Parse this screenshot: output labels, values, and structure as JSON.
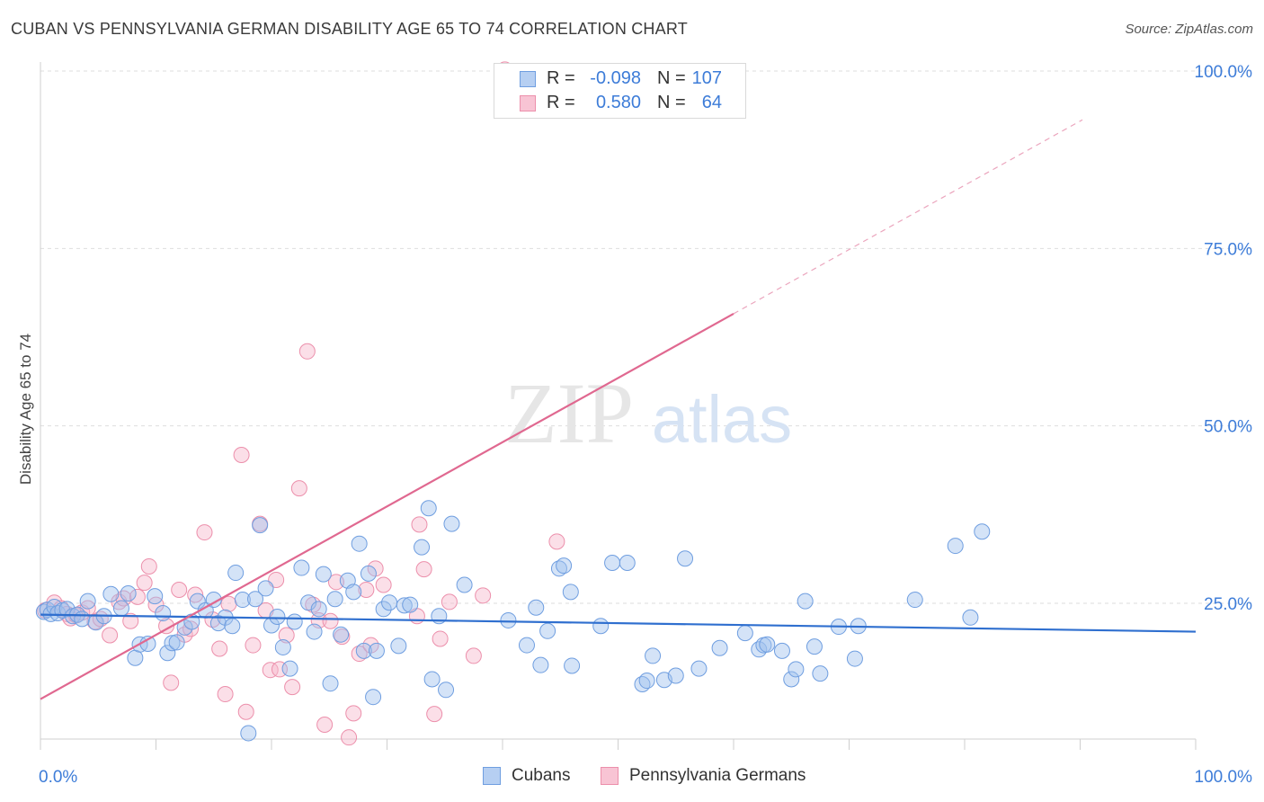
{
  "title": "CUBAN VS PENNSYLVANIA GERMAN DISABILITY AGE 65 TO 74 CORRELATION CHART",
  "source": "Source: ZipAtlas.com",
  "watermark": {
    "zip": "ZIP",
    "atlas": "atlas"
  },
  "legend": {
    "rows": [
      {
        "r_label": "R =",
        "r_value": "-0.098",
        "n_label": "N =",
        "n_value": "107",
        "fill": "#b6cff2",
        "stroke": "#6f9ee0"
      },
      {
        "r_label": "R =",
        "r_value": "0.580",
        "n_label": "N =",
        "n_value": "64",
        "fill": "#f8c4d4",
        "stroke": "#ec8fab"
      }
    ]
  },
  "bottom_legend": [
    {
      "label": "Cubans",
      "fill": "#b6cff2",
      "stroke": "#6f9ee0"
    },
    {
      "label": "Pennsylvania Germans",
      "fill": "#f8c4d4",
      "stroke": "#ec8fab"
    }
  ],
  "colors": {
    "cubans_fill": "rgba(160,192,238,0.45)",
    "cubans_stroke": "#6f9ee0",
    "cubans_line": "#2f6fcf",
    "pg_fill": "rgba(246,184,204,0.45)",
    "pg_stroke": "#ec8fab",
    "pg_line": "#e06890",
    "tick_label": "#3d7cd8"
  },
  "chart_data": {
    "type": "scatter",
    "title": "CUBAN VS PENNSYLVANIA GERMAN DISABILITY AGE 65 TO 74 CORRELATION CHART",
    "xlabel": "",
    "ylabel": "Disability Age 65 to 74",
    "xlim": [
      0,
      100
    ],
    "ylim": [
      0,
      105
    ],
    "x_tick_labels": [
      "0.0%",
      "100.0%"
    ],
    "y_ticks": [
      25,
      50,
      75,
      100
    ],
    "y_tick_labels": [
      "25.0%",
      "50.0%",
      "75.0%",
      "100.0%"
    ],
    "grid": "horizontal dashed",
    "legend_position": "top-center",
    "series": [
      {
        "name": "Cubans",
        "r": -0.098,
        "n": 107,
        "trend": {
          "x0": 0,
          "y0": 23.4,
          "x1": 100,
          "y1": 21.0
        },
        "points": [
          [
            0.3,
            23.8
          ],
          [
            0.6,
            24.1
          ],
          [
            0.9,
            23.5
          ],
          [
            1.2,
            24.5
          ],
          [
            1.5,
            23.6
          ],
          [
            1.9,
            24.0
          ],
          [
            2.3,
            24.2
          ],
          [
            2.8,
            23.2
          ],
          [
            3.2,
            23.4
          ],
          [
            3.6,
            22.8
          ],
          [
            4.1,
            25.3
          ],
          [
            4.8,
            22.3
          ],
          [
            5.5,
            23.2
          ],
          [
            6.1,
            26.3
          ],
          [
            7.0,
            24.3
          ],
          [
            7.6,
            26.4
          ],
          [
            8.2,
            17.3
          ],
          [
            8.6,
            19.2
          ],
          [
            9.3,
            19.3
          ],
          [
            9.9,
            26.0
          ],
          [
            10.6,
            23.6
          ],
          [
            11.0,
            18.0
          ],
          [
            11.4,
            19.4
          ],
          [
            11.8,
            19.5
          ],
          [
            12.5,
            21.6
          ],
          [
            13.1,
            22.4
          ],
          [
            13.6,
            25.3
          ],
          [
            14.3,
            24.0
          ],
          [
            15.0,
            25.5
          ],
          [
            15.4,
            22.2
          ],
          [
            16.0,
            23.0
          ],
          [
            16.6,
            21.8
          ],
          [
            16.9,
            29.3
          ],
          [
            17.5,
            25.5
          ],
          [
            18.0,
            6.7
          ],
          [
            18.6,
            25.6
          ],
          [
            19.0,
            36.0
          ],
          [
            19.5,
            27.1
          ],
          [
            20.0,
            21.9
          ],
          [
            20.5,
            23.1
          ],
          [
            21.0,
            18.8
          ],
          [
            21.6,
            15.8
          ],
          [
            22.0,
            22.4
          ],
          [
            22.6,
            30.0
          ],
          [
            23.2,
            25.1
          ],
          [
            23.7,
            21.0
          ],
          [
            24.1,
            24.2
          ],
          [
            24.5,
            29.1
          ],
          [
            25.1,
            13.7
          ],
          [
            25.5,
            25.6
          ],
          [
            26.0,
            20.6
          ],
          [
            26.6,
            28.2
          ],
          [
            27.1,
            26.6
          ],
          [
            27.6,
            33.4
          ],
          [
            28.0,
            18.3
          ],
          [
            28.4,
            29.2
          ],
          [
            28.8,
            11.8
          ],
          [
            29.1,
            18.3
          ],
          [
            29.7,
            24.2
          ],
          [
            30.2,
            25.1
          ],
          [
            31.0,
            19.0
          ],
          [
            31.5,
            24.7
          ],
          [
            32.0,
            24.8
          ],
          [
            33.0,
            32.9
          ],
          [
            33.6,
            38.4
          ],
          [
            33.9,
            14.3
          ],
          [
            34.5,
            23.2
          ],
          [
            35.1,
            12.8
          ],
          [
            35.6,
            36.2
          ],
          [
            36.7,
            27.6
          ],
          [
            40.5,
            22.6
          ],
          [
            42.1,
            19.1
          ],
          [
            42.9,
            24.4
          ],
          [
            43.3,
            16.3
          ],
          [
            43.9,
            21.1
          ],
          [
            44.9,
            29.9
          ],
          [
            45.3,
            30.3
          ],
          [
            45.9,
            26.6
          ],
          [
            46.0,
            16.2
          ],
          [
            48.5,
            21.8
          ],
          [
            49.5,
            30.7
          ],
          [
            50.8,
            30.7
          ],
          [
            52.1,
            13.6
          ],
          [
            52.5,
            14.1
          ],
          [
            53.0,
            17.6
          ],
          [
            54.0,
            14.2
          ],
          [
            55.0,
            14.8
          ],
          [
            55.8,
            31.3
          ],
          [
            57.0,
            15.8
          ],
          [
            58.8,
            18.7
          ],
          [
            61.0,
            20.8
          ],
          [
            62.2,
            18.5
          ],
          [
            62.6,
            19.1
          ],
          [
            62.9,
            19.2
          ],
          [
            64.2,
            18.3
          ],
          [
            65.0,
            14.3
          ],
          [
            65.4,
            15.7
          ],
          [
            66.2,
            25.3
          ],
          [
            67.0,
            18.9
          ],
          [
            67.5,
            15.1
          ],
          [
            69.1,
            21.7
          ],
          [
            70.5,
            17.2
          ],
          [
            70.8,
            21.8
          ],
          [
            75.7,
            25.5
          ],
          [
            79.2,
            33.1
          ],
          [
            80.5,
            23.0
          ],
          [
            81.5,
            35.1
          ]
        ]
      },
      {
        "name": "Pennsylvania Germans",
        "r": 0.58,
        "n": 64,
        "trend": {
          "x0": 0,
          "y0": 11.5,
          "x1": 100,
          "y1": 102.0,
          "solid_until_x": 60
        },
        "points": [
          [
            0.4,
            24.0
          ],
          [
            1.2,
            25.1
          ],
          [
            1.8,
            24.3
          ],
          [
            2.3,
            23.5
          ],
          [
            2.6,
            22.9
          ],
          [
            3.1,
            23.3
          ],
          [
            3.6,
            23.7
          ],
          [
            4.1,
            24.3
          ],
          [
            4.7,
            22.4
          ],
          [
            5.2,
            22.8
          ],
          [
            6.0,
            20.5
          ],
          [
            6.8,
            25.2
          ],
          [
            7.2,
            25.7
          ],
          [
            7.8,
            22.5
          ],
          [
            8.4,
            25.9
          ],
          [
            9.0,
            27.9
          ],
          [
            9.4,
            30.2
          ],
          [
            10.0,
            24.8
          ],
          [
            10.9,
            21.8
          ],
          [
            11.3,
            13.8
          ],
          [
            12.0,
            26.9
          ],
          [
            12.5,
            20.6
          ],
          [
            13.0,
            21.4
          ],
          [
            13.4,
            26.2
          ],
          [
            14.2,
            35.0
          ],
          [
            14.9,
            22.7
          ],
          [
            15.5,
            18.6
          ],
          [
            16.0,
            12.2
          ],
          [
            16.3,
            24.9
          ],
          [
            17.4,
            45.9
          ],
          [
            17.8,
            9.7
          ],
          [
            18.4,
            19.1
          ],
          [
            19.0,
            36.2
          ],
          [
            19.5,
            24.0
          ],
          [
            19.9,
            15.6
          ],
          [
            20.4,
            28.3
          ],
          [
            20.7,
            15.7
          ],
          [
            21.3,
            20.5
          ],
          [
            21.8,
            13.2
          ],
          [
            22.4,
            41.2
          ],
          [
            23.1,
            60.5
          ],
          [
            23.6,
            24.8
          ],
          [
            24.1,
            22.6
          ],
          [
            24.6,
            7.9
          ],
          [
            25.1,
            22.5
          ],
          [
            25.6,
            28.0
          ],
          [
            26.1,
            20.3
          ],
          [
            26.7,
            6.1
          ],
          [
            27.1,
            9.5
          ],
          [
            27.6,
            17.9
          ],
          [
            28.2,
            26.9
          ],
          [
            28.6,
            19.1
          ],
          [
            29.0,
            29.9
          ],
          [
            29.7,
            27.6
          ],
          [
            32.6,
            23.2
          ],
          [
            32.8,
            36.1
          ],
          [
            33.2,
            29.8
          ],
          [
            34.1,
            9.4
          ],
          [
            34.6,
            20.0
          ],
          [
            35.4,
            25.2
          ],
          [
            37.5,
            17.6
          ],
          [
            38.3,
            26.1
          ],
          [
            40.2,
            100.2
          ],
          [
            44.7,
            33.7
          ]
        ]
      }
    ]
  }
}
